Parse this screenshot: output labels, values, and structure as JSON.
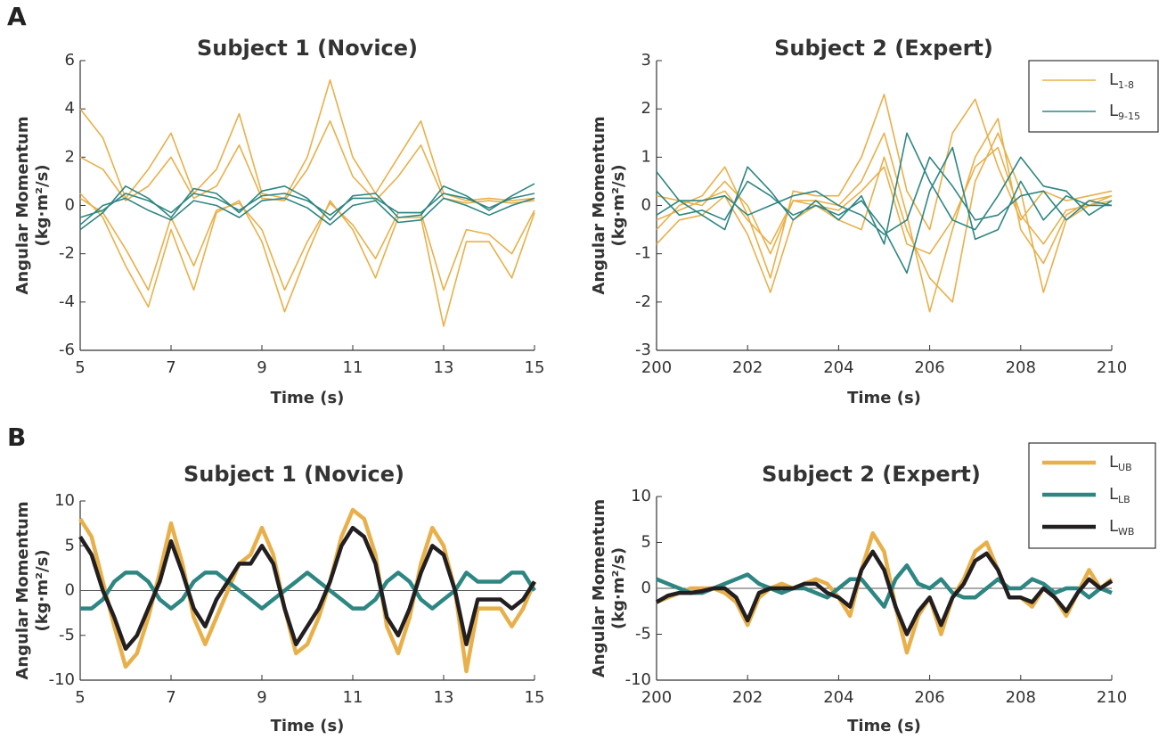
{
  "panels": [
    "A",
    "B"
  ],
  "chart_data": [
    {
      "type": "line",
      "title": "Subject 1 (Novice)",
      "xlabel": "Time (s)",
      "ylabel": [
        "Angular Momentum",
        "(kg·m²/s)"
      ],
      "x": [
        5,
        5.5,
        6,
        6.5,
        7,
        7.5,
        8,
        8.5,
        9,
        9.5,
        10,
        10.5,
        11,
        11.5,
        12,
        12.5,
        13,
        13.5,
        14,
        14.5,
        15
      ],
      "xlim": [
        5,
        15
      ],
      "ylim": [
        -6,
        6
      ],
      "xticks": [
        5,
        7,
        9,
        11,
        13,
        15
      ],
      "yticks": [
        -6,
        -4,
        -2,
        0,
        2,
        4,
        6
      ],
      "line_width": 1.6,
      "legend": false,
      "series": [
        {
          "name": "L",
          "subscript": "1-8",
          "color": "#e8b04a",
          "lines": [
            [
              4,
              2.8,
              0.3,
              1.5,
              3,
              0.5,
              1.5,
              3.8,
              0.5,
              0.3,
              2,
              5.2,
              2,
              0.5,
              2,
              3.5,
              0.5,
              0.2,
              0.3,
              0.2,
              0.3
            ],
            [
              0.5,
              -0.5,
              -2.5,
              -4.2,
              -1,
              -3.5,
              -0.3,
              0.2,
              -1.5,
              -4.4,
              -2,
              0.2,
              -1,
              -3,
              -0.5,
              -0.5,
              -5,
              -1.5,
              -1.5,
              -3,
              -0.3
            ],
            [
              2,
              1.5,
              0.2,
              0.8,
              2,
              0.3,
              0.8,
              2.5,
              0.3,
              0.2,
              1.5,
              3.5,
              1.2,
              0.2,
              1.2,
              2.5,
              0.3,
              0.1,
              0.2,
              0.1,
              0.2
            ],
            [
              0.3,
              -0.3,
              -1.8,
              -3.5,
              -0.5,
              -2.5,
              -0.2,
              0.1,
              -1,
              -3.5,
              -1.5,
              0.1,
              -0.8,
              -2.2,
              -0.3,
              -0.3,
              -3.5,
              -1,
              -1.2,
              -2,
              -0.2
            ]
          ]
        },
        {
          "name": "L",
          "subscript": "9-15",
          "color": "#2e8682",
          "lines": [
            [
              -1,
              -0.3,
              0.8,
              0.3,
              -0.5,
              0.7,
              0.5,
              -0.3,
              0.6,
              0.8,
              0.3,
              -0.6,
              0.4,
              0.5,
              -0.5,
              -0.4,
              0.8,
              0.4,
              -0.2,
              0.4,
              0.9
            ],
            [
              -0.5,
              -0.2,
              0.5,
              0.2,
              -0.3,
              0.5,
              0.3,
              -0.2,
              0.4,
              0.5,
              0.2,
              -0.4,
              0.3,
              0.3,
              -0.3,
              -0.3,
              0.5,
              0.3,
              -0.1,
              0.3,
              0.5
            ],
            [
              -0.8,
              0,
              0.3,
              -0.2,
              -0.6,
              0.2,
              0,
              -0.5,
              0.2,
              0.3,
              -0.1,
              -0.8,
              0,
              0.2,
              -0.7,
              -0.6,
              0.3,
              0,
              -0.4,
              0,
              0.3
            ]
          ]
        }
      ]
    },
    {
      "type": "line",
      "title": "Subject 2 (Expert)",
      "xlabel": "Time (s)",
      "ylabel": [
        "Angular Momentum",
        "(kg·m²/s)"
      ],
      "x": [
        200,
        200.5,
        201,
        201.5,
        202,
        202.5,
        203,
        203.5,
        204,
        204.5,
        205,
        205.5,
        206,
        206.5,
        207,
        207.5,
        208,
        208.5,
        209,
        209.5,
        210
      ],
      "xlim": [
        200,
        210
      ],
      "ylim": [
        -3,
        3
      ],
      "xticks": [
        200,
        202,
        204,
        206,
        208,
        210
      ],
      "yticks": [
        -3,
        -2,
        -1,
        0,
        1,
        2,
        3
      ],
      "line_width": 1.6,
      "legend": true,
      "series": [
        {
          "name": "L",
          "subscript": "1-8",
          "color": "#e8b04a",
          "lines": [
            [
              -0.5,
              0,
              0.2,
              0.8,
              -0.2,
              -1.5,
              0.3,
              0.2,
              0.2,
              1,
              2.3,
              0.3,
              -0.5,
              1.5,
              2.2,
              0.8,
              -0.3,
              0.3,
              0.1,
              0.2,
              0.3
            ],
            [
              -0.8,
              -0.3,
              -0.2,
              0.2,
              -0.6,
              -1.8,
              -0.3,
              0,
              -0.3,
              -0.5,
              1,
              -0.5,
              -1.5,
              -2,
              0.5,
              1.5,
              0.3,
              -1.8,
              -0.3,
              0,
              0.2
            ],
            [
              0.2,
              0.1,
              0,
              0.5,
              0,
              -1,
              0.1,
              0.1,
              0,
              0.5,
              1.5,
              -0.2,
              -2.2,
              -0.5,
              1,
              1.8,
              -0.5,
              -1.2,
              -0.2,
              0.1,
              0.2
            ],
            [
              -0.3,
              -0.1,
              0.1,
              0.3,
              -0.3,
              -0.8,
              0.1,
              0,
              -0.1,
              0.3,
              0.8,
              -0.8,
              -1,
              -0.3,
              0.8,
              1.2,
              -0.2,
              -0.8,
              -0.1,
              0,
              0.1
            ]
          ]
        },
        {
          "name": "L",
          "subscript": "9-15",
          "color": "#2e8682",
          "lines": [
            [
              0.7,
              0.1,
              -0.2,
              -0.5,
              0.8,
              0.3,
              -0.3,
              0.1,
              -0.3,
              0.2,
              -0.8,
              1.5,
              0.5,
              -0.3,
              -0.5,
              0.2,
              1,
              0.4,
              0.3,
              -0.2,
              0.1
            ],
            [
              0.3,
              -0.2,
              -0.1,
              -0.3,
              0.5,
              0.2,
              -0.2,
              0,
              -0.2,
              0.1,
              -0.5,
              -1.4,
              0.3,
              1.2,
              -0.7,
              -0.5,
              0.5,
              -0.3,
              0.2,
              0,
              0
            ],
            [
              -0.2,
              0.1,
              0.1,
              0.2,
              -0.2,
              0,
              0.2,
              0.3,
              0,
              -0.2,
              -0.6,
              -0.3,
              1,
              0.4,
              -0.3,
              -0.2,
              0.2,
              0.3,
              -0.3,
              0.1,
              0
            ]
          ]
        }
      ]
    },
    {
      "type": "line",
      "title": "Subject 1 (Novice)",
      "xlabel": "Time (s)",
      "ylabel": [
        "Angular Momentum",
        "(kg·m²/s)"
      ],
      "x": [
        5,
        5.25,
        5.5,
        5.75,
        6,
        6.25,
        6.5,
        6.75,
        7,
        7.25,
        7.5,
        7.75,
        8,
        8.25,
        8.5,
        8.75,
        9,
        9.25,
        9.5,
        9.75,
        10,
        10.25,
        10.5,
        10.75,
        11,
        11.25,
        11.5,
        11.75,
        12,
        12.25,
        12.5,
        12.75,
        13,
        13.25,
        13.5,
        13.75,
        14,
        14.25,
        14.5,
        14.75,
        15
      ],
      "xlim": [
        5,
        15
      ],
      "ylim": [
        -10,
        10
      ],
      "xticks": [
        5,
        7,
        9,
        11,
        13,
        15
      ],
      "yticks": [
        -10,
        -5,
        0,
        5,
        10
      ],
      "hline": 0,
      "line_width": 4.5,
      "legend": false,
      "series": [
        {
          "name": "L",
          "subscript": "UB",
          "color": "#e8b04a",
          "lines": [
            [
              8,
              6,
              1,
              -4,
              -8.5,
              -7,
              -3,
              2,
              7.5,
              3,
              -3,
              -6,
              -3,
              0,
              3,
              4,
              7,
              4,
              -2,
              -7,
              -6,
              -3,
              1,
              6,
              9,
              8,
              4,
              -4,
              -7,
              -3,
              3,
              7,
              5,
              0,
              -9,
              -2,
              -2,
              -2,
              -4,
              -2,
              1
            ]
          ]
        },
        {
          "name": "L",
          "subscript": "LB",
          "color": "#2e8682",
          "lines": [
            [
              -2,
              -2,
              -1,
              1,
              2,
              2,
              1,
              -1,
              -2,
              -1,
              1,
              2,
              2,
              1,
              0,
              -1,
              -2,
              -1,
              0,
              1,
              2,
              1,
              0,
              -1,
              -2,
              -2,
              -1,
              1,
              2,
              1,
              -1,
              -2,
              -1,
              0,
              2,
              1,
              1,
              1,
              2,
              2,
              0
            ]
          ]
        },
        {
          "name": "L",
          "subscript": "WB",
          "color": "#231f20",
          "lines": [
            [
              6,
              4,
              0,
              -3,
              -6.5,
              -5,
              -2,
              1,
              5.5,
              2,
              -2,
              -4,
              -1,
              1,
              3,
              3,
              5,
              3,
              -2,
              -6,
              -4,
              -2,
              1,
              5,
              7,
              6,
              3,
              -3,
              -5,
              -2,
              2,
              5,
              4,
              0,
              -6,
              -1,
              -1,
              -1,
              -2,
              -1,
              1
            ]
          ]
        }
      ]
    },
    {
      "type": "line",
      "title": "Subject 2 (Expert)",
      "xlabel": "Time (s)",
      "ylabel": [
        "Angular Momentum",
        "(kg·m²/s)"
      ],
      "x": [
        200,
        200.25,
        200.5,
        200.75,
        201,
        201.25,
        201.5,
        201.75,
        202,
        202.25,
        202.5,
        202.75,
        203,
        203.25,
        203.5,
        203.75,
        204,
        204.25,
        204.5,
        204.75,
        205,
        205.25,
        205.5,
        205.75,
        206,
        206.25,
        206.5,
        206.75,
        207,
        207.25,
        207.5,
        207.75,
        208,
        208.25,
        208.5,
        208.75,
        209,
        209.25,
        209.5,
        209.75,
        210
      ],
      "xlim": [
        200,
        210
      ],
      "ylim": [
        -10,
        10
      ],
      "xticks": [
        200,
        202,
        204,
        206,
        208,
        210
      ],
      "yticks": [
        -10,
        -5,
        0,
        5,
        10
      ],
      "hline": 0,
      "line_width": 4.5,
      "legend": true,
      "series": [
        {
          "name": "L",
          "subscript": "UB",
          "color": "#e8b04a",
          "lines": [
            [
              -1.5,
              -1,
              -0.5,
              0,
              0,
              0,
              -0.5,
              -1.5,
              -4,
              -1,
              0,
              0.5,
              0,
              0.5,
              1,
              0.5,
              -1,
              -3,
              2,
              6,
              4,
              -2,
              -7,
              -3,
              -1,
              -5,
              -1,
              1,
              4,
              5,
              2,
              -1,
              -1,
              -2,
              0,
              -1,
              -3,
              -0.5,
              2,
              0,
              1
            ]
          ]
        },
        {
          "name": "L",
          "subscript": "LB",
          "color": "#2e8682",
          "lines": [
            [
              1,
              0.5,
              0,
              -0.5,
              -0.5,
              0,
              0.5,
              1,
              1.5,
              0.5,
              0,
              -0.5,
              0,
              0,
              -0.5,
              -1,
              0,
              1,
              1,
              -0.5,
              -2,
              1,
              2.5,
              0.5,
              0,
              1,
              -0.5,
              -1,
              -1,
              0,
              1,
              0,
              0,
              1,
              0.5,
              -0.5,
              0,
              0,
              -1,
              0,
              -0.5
            ]
          ]
        },
        {
          "name": "L",
          "subscript": "WB",
          "color": "#231f20",
          "lines": [
            [
              -1.5,
              -0.8,
              -0.5,
              -0.5,
              -0.3,
              0,
              0,
              -1,
              -3.5,
              -0.5,
              0,
              0,
              0,
              0.5,
              0.5,
              -0.5,
              -1,
              -2,
              2,
              4,
              2,
              -2,
              -5,
              -2.5,
              -1,
              -4,
              -1,
              0.5,
              3,
              3.8,
              2,
              -1,
              -1,
              -1.5,
              0,
              -1,
              -2.5,
              -0.5,
              1,
              0,
              0.8
            ]
          ]
        }
      ]
    }
  ]
}
